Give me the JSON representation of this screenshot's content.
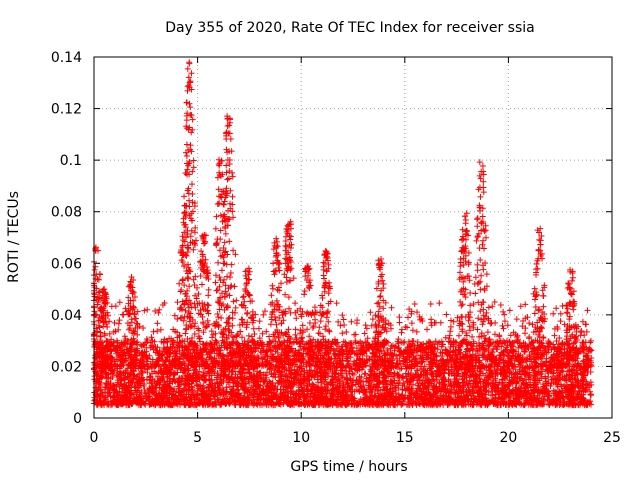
{
  "chart_data": {
    "type": "scatter",
    "title": "Day 355 of 2020, Rate Of TEC Index for receiver ssia",
    "xlabel": "GPS time / hours",
    "ylabel": "ROTI / TECUs",
    "xlim": [
      0,
      25
    ],
    "ylim": [
      0,
      0.14
    ],
    "xticks": [
      0,
      5,
      10,
      15,
      20,
      25
    ],
    "xtick_labels": [
      "0",
      "5",
      "10",
      "15",
      "20",
      "25"
    ],
    "yticks": [
      0,
      0.02,
      0.04,
      0.06,
      0.08,
      0.1,
      0.12,
      0.14
    ],
    "ytick_labels": [
      "0",
      "0.02",
      "0.04",
      "0.06",
      "0.08",
      "0.1",
      "0.12",
      "0.14"
    ],
    "grid": true,
    "marker": "+",
    "color": "#ff0000",
    "data_range_x": [
      0,
      24
    ],
    "baseline_band": [
      0.005,
      0.03
    ],
    "peaks": [
      {
        "x": 0.1,
        "y": 0.068
      },
      {
        "x": 0.5,
        "y": 0.05
      },
      {
        "x": 1.8,
        "y": 0.055
      },
      {
        "x": 4.4,
        "y": 0.083
      },
      {
        "x": 4.6,
        "y": 0.138
      },
      {
        "x": 5.3,
        "y": 0.072
      },
      {
        "x": 6.1,
        "y": 0.101
      },
      {
        "x": 6.5,
        "y": 0.119
      },
      {
        "x": 7.4,
        "y": 0.06
      },
      {
        "x": 8.8,
        "y": 0.07
      },
      {
        "x": 9.4,
        "y": 0.078
      },
      {
        "x": 10.3,
        "y": 0.06
      },
      {
        "x": 11.2,
        "y": 0.065
      },
      {
        "x": 13.8,
        "y": 0.062
      },
      {
        "x": 17.9,
        "y": 0.08
      },
      {
        "x": 18.7,
        "y": 0.1
      },
      {
        "x": 21.5,
        "y": 0.074
      },
      {
        "x": 23.0,
        "y": 0.058
      }
    ]
  }
}
